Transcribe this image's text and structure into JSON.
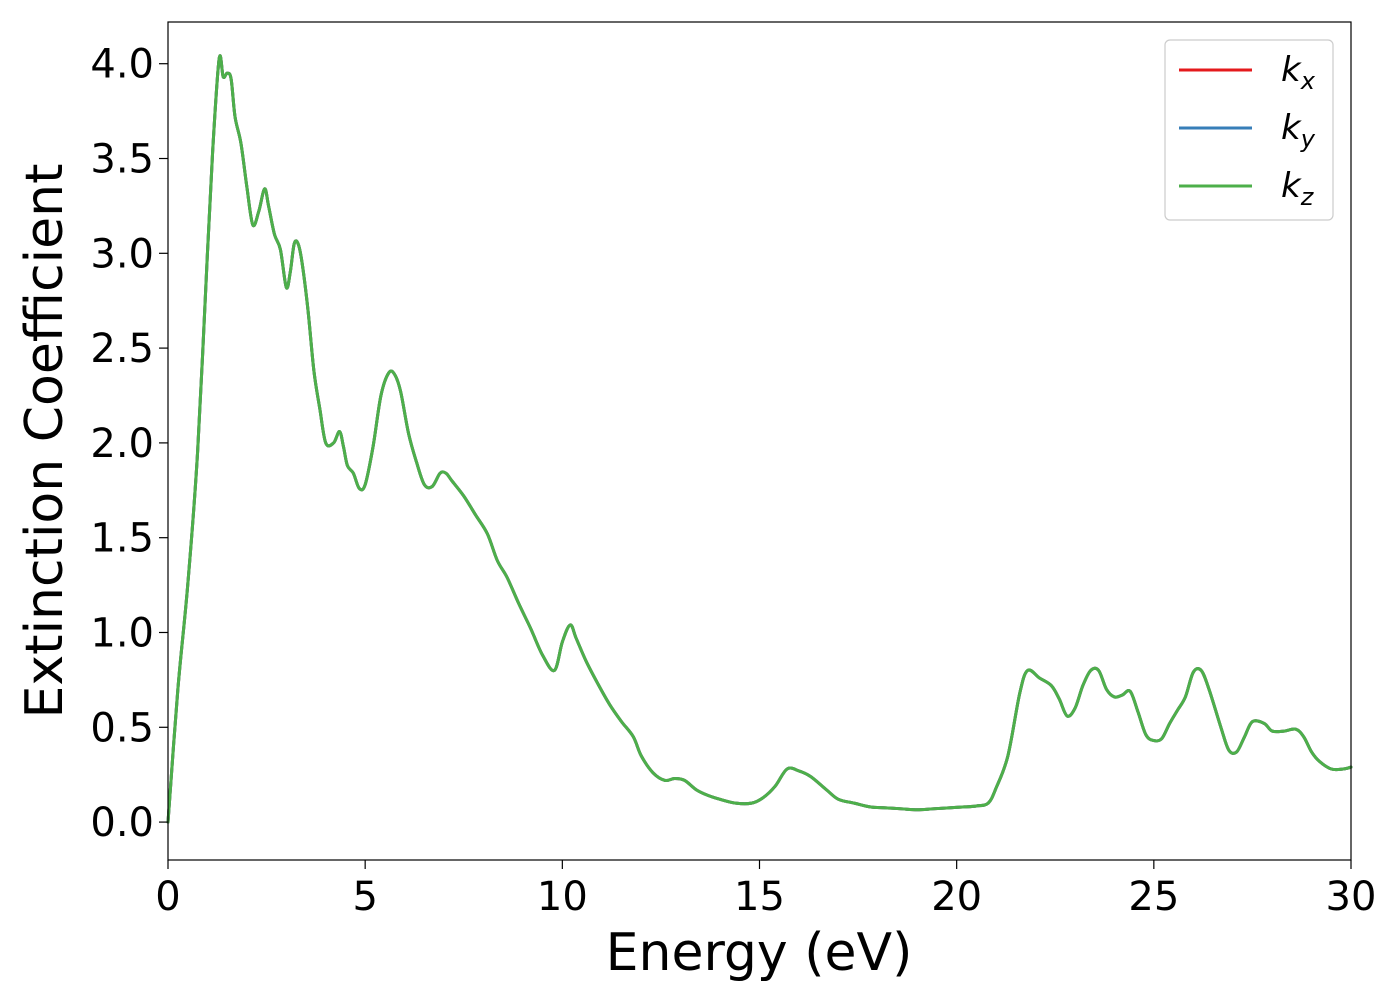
{
  "chart_data": {
    "type": "line",
    "title": "",
    "xlabel": "Energy (eV)",
    "ylabel": "Extinction Coefficient",
    "xlim": [
      0,
      30
    ],
    "ylim": [
      -0.2,
      4.22
    ],
    "xticks": [
      0,
      5,
      10,
      15,
      20,
      25,
      30
    ],
    "xtick_labels": [
      "0",
      "5",
      "10",
      "15",
      "20",
      "25",
      "30"
    ],
    "yticks": [
      0.0,
      0.5,
      1.0,
      1.5,
      2.0,
      2.5,
      3.0,
      3.5,
      4.0
    ],
    "ytick_labels": [
      "0.0",
      "0.5",
      "1.0",
      "1.5",
      "2.0",
      "2.5",
      "3.0",
      "3.5",
      "4.0"
    ],
    "grid": false,
    "legend_position": "top-right",
    "series": [
      {
        "name": "k_x",
        "base": "k",
        "sub": "x",
        "color": "#e41a1c"
      },
      {
        "name": "k_y",
        "base": "k",
        "sub": "y",
        "color": "#377eb8"
      },
      {
        "name": "k_z",
        "base": "k",
        "sub": "z",
        "color": "#4daf4a"
      }
    ],
    "x": [
      0.0,
      0.25,
      0.5,
      0.75,
      1.0,
      1.15,
      1.3,
      1.4,
      1.5,
      1.6,
      1.7,
      1.85,
      2.0,
      2.15,
      2.3,
      2.45,
      2.55,
      2.7,
      2.85,
      3.0,
      3.1,
      3.2,
      3.3,
      3.4,
      3.55,
      3.7,
      3.85,
      4.0,
      4.2,
      4.35,
      4.45,
      4.55,
      4.7,
      4.85,
      5.0,
      5.2,
      5.4,
      5.6,
      5.75,
      5.9,
      6.1,
      6.3,
      6.5,
      6.7,
      6.9,
      7.05,
      7.2,
      7.5,
      7.8,
      8.1,
      8.35,
      8.6,
      8.9,
      9.2,
      9.5,
      9.8,
      10.0,
      10.2,
      10.35,
      10.6,
      10.9,
      11.2,
      11.5,
      11.8,
      12.0,
      12.3,
      12.6,
      12.85,
      13.1,
      13.4,
      13.7,
      14.0,
      14.4,
      14.8,
      15.1,
      15.4,
      15.7,
      16.0,
      16.3,
      16.7,
      17.0,
      17.4,
      17.8,
      18.2,
      18.6,
      19.0,
      19.4,
      19.8,
      20.2,
      20.5,
      20.8,
      21.0,
      21.3,
      21.6,
      21.8,
      22.1,
      22.4,
      22.6,
      22.8,
      23.0,
      23.2,
      23.4,
      23.6,
      23.8,
      24.0,
      24.2,
      24.4,
      24.6,
      24.8,
      25.0,
      25.2,
      25.4,
      25.6,
      25.8,
      26.0,
      26.2,
      26.4,
      26.7,
      26.9,
      27.1,
      27.3,
      27.5,
      27.8,
      28.0,
      28.3,
      28.6,
      28.8,
      29.0,
      29.2,
      29.5,
      29.8,
      30.0
    ],
    "y": [
      0.0,
      0.7,
      1.25,
      1.95,
      3.0,
      3.6,
      4.03,
      3.93,
      3.95,
      3.92,
      3.72,
      3.58,
      3.35,
      3.15,
      3.22,
      3.34,
      3.25,
      3.1,
      3.02,
      2.82,
      2.9,
      3.05,
      3.05,
      2.95,
      2.7,
      2.38,
      2.18,
      2.0,
      2.0,
      2.06,
      1.98,
      1.88,
      1.84,
      1.76,
      1.78,
      1.98,
      2.25,
      2.37,
      2.36,
      2.27,
      2.05,
      1.9,
      1.78,
      1.77,
      1.84,
      1.84,
      1.8,
      1.72,
      1.62,
      1.52,
      1.38,
      1.29,
      1.15,
      1.02,
      0.88,
      0.8,
      0.95,
      1.04,
      0.97,
      0.85,
      0.73,
      0.62,
      0.53,
      0.45,
      0.35,
      0.26,
      0.22,
      0.23,
      0.22,
      0.17,
      0.14,
      0.12,
      0.1,
      0.1,
      0.13,
      0.19,
      0.28,
      0.27,
      0.24,
      0.17,
      0.12,
      0.1,
      0.08,
      0.075,
      0.07,
      0.065,
      0.07,
      0.075,
      0.08,
      0.085,
      0.1,
      0.18,
      0.35,
      0.68,
      0.8,
      0.76,
      0.72,
      0.65,
      0.56,
      0.6,
      0.72,
      0.8,
      0.8,
      0.7,
      0.66,
      0.67,
      0.69,
      0.58,
      0.46,
      0.43,
      0.44,
      0.52,
      0.59,
      0.66,
      0.79,
      0.8,
      0.7,
      0.5,
      0.38,
      0.37,
      0.45,
      0.53,
      0.52,
      0.48,
      0.48,
      0.49,
      0.45,
      0.37,
      0.32,
      0.28,
      0.28,
      0.29
    ]
  }
}
